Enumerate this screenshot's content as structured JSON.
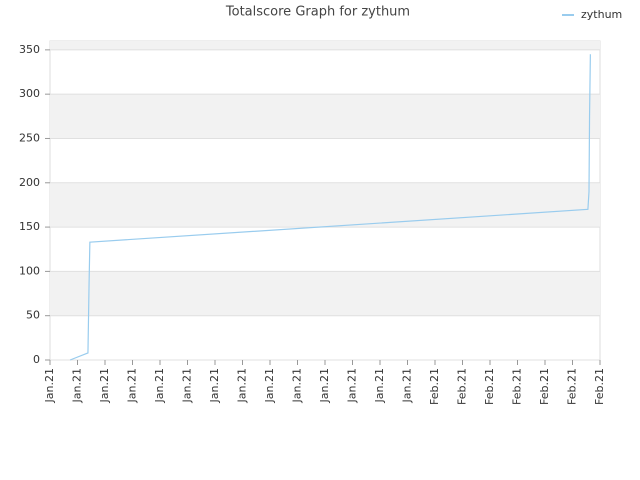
{
  "chart_data": {
    "type": "line",
    "title": "Totalscore Graph for zythum",
    "x": [
      0.73,
      1.38,
      1.42,
      1.45,
      19.56,
      19.6,
      19.62,
      19.65
    ],
    "series": [
      {
        "name": "zythum",
        "color": "#99ccee",
        "values": [
          0,
          8,
          85,
          133,
          170,
          190,
          275,
          345
        ]
      }
    ],
    "xlim": [
      0,
      20
    ],
    "ylim": [
      0,
      360
    ],
    "yticks": [
      0,
      50,
      100,
      150,
      200,
      250,
      300,
      350
    ],
    "xticks": [
      {
        "value": 0,
        "label": "Jan.21"
      },
      {
        "value": 1,
        "label": "Jan.21"
      },
      {
        "value": 2,
        "label": "Jan.21"
      },
      {
        "value": 3,
        "label": "Jan.21"
      },
      {
        "value": 4,
        "label": "Jan.21"
      },
      {
        "value": 5,
        "label": "Jan.21"
      },
      {
        "value": 6,
        "label": "Jan.21"
      },
      {
        "value": 7,
        "label": "Jan.21"
      },
      {
        "value": 8,
        "label": "Jan.21"
      },
      {
        "value": 9,
        "label": "Jan.21"
      },
      {
        "value": 10,
        "label": "Jan.21"
      },
      {
        "value": 11,
        "label": "Jan.21"
      },
      {
        "value": 12,
        "label": "Jan.21"
      },
      {
        "value": 13,
        "label": "Jan.21"
      },
      {
        "value": 14,
        "label": "Feb.21"
      },
      {
        "value": 15,
        "label": "Feb.21"
      },
      {
        "value": 16,
        "label": "Feb.21"
      },
      {
        "value": 17,
        "label": "Feb.21"
      },
      {
        "value": 18,
        "label": "Feb.21"
      },
      {
        "value": 19,
        "label": "Feb.21"
      },
      {
        "value": 20,
        "label": "Feb.21"
      }
    ],
    "grid": true,
    "legend": "top-right"
  }
}
